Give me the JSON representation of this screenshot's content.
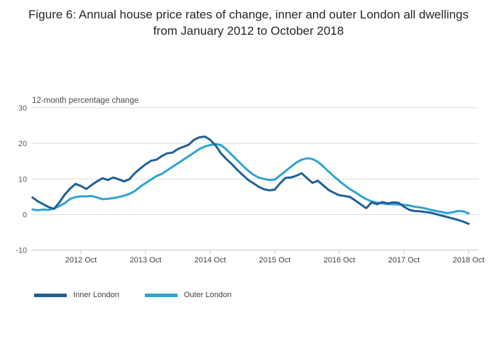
{
  "figure": {
    "title": "Figure 6: Annual house price rates of change, inner and outer London all dwellings from January 2012 to October 2018",
    "unit_label": "12-month percentage change"
  },
  "chart_data": {
    "type": "line",
    "title": "Figure 6: Annual house price rates of change, inner and outer London all dwellings from January 2012 to October 2018",
    "ylabel": "12-month percentage change",
    "xlabel": "",
    "x_start": "2012-01",
    "x_end": "2018-10",
    "months_total": 82,
    "ylim": [
      -10,
      30
    ],
    "y_ticks": [
      30,
      20,
      10,
      0,
      -10
    ],
    "x_tick_labels": [
      "2012 Oct",
      "2013 Oct",
      "2014 Oct",
      "2015 Oct",
      "2016 Oct",
      "2017 Oct",
      "2018 Oct"
    ],
    "x_tick_month_indices": [
      9,
      21,
      33,
      45,
      57,
      69,
      81
    ],
    "grid": true,
    "legend_position": "bottom-left",
    "series": [
      {
        "name": "Inner London",
        "color": "#206095",
        "values": [
          4.8,
          3.7,
          2.9,
          2.1,
          1.6,
          3.4,
          5.6,
          7.3,
          8.6,
          8.0,
          7.2,
          8.3,
          9.3,
          10.2,
          9.7,
          10.4,
          9.9,
          9.3,
          9.9,
          11.6,
          12.9,
          14.1,
          15.1,
          15.4,
          16.4,
          17.2,
          17.4,
          18.4,
          19.0,
          19.6,
          21.0,
          21.7,
          21.9,
          21.0,
          19.4,
          17.2,
          15.6,
          14.2,
          12.6,
          11.2,
          9.8,
          8.8,
          7.8,
          7.1,
          6.8,
          7.0,
          8.8,
          10.3,
          10.4,
          10.9,
          11.6,
          10.2,
          8.9,
          9.5,
          8.2,
          6.9,
          6.1,
          5.4,
          5.2,
          4.9,
          3.9,
          2.8,
          1.8,
          3.4,
          2.9,
          3.5,
          3.1,
          3.4,
          3.3,
          2.2,
          1.3,
          1.0,
          0.9,
          0.7,
          0.5,
          0.1,
          -0.3,
          -0.7,
          -1.1,
          -1.5,
          -2.0,
          -2.6
        ]
      },
      {
        "name": "Outer London",
        "color": "#2fa3d2",
        "values": [
          1.4,
          1.2,
          1.4,
          1.3,
          1.7,
          2.4,
          3.2,
          4.4,
          4.9,
          5.1,
          5.1,
          5.2,
          4.8,
          4.3,
          4.4,
          4.6,
          4.9,
          5.3,
          5.8,
          6.6,
          7.8,
          8.8,
          9.8,
          10.8,
          11.4,
          12.4,
          13.4,
          14.4,
          15.4,
          16.4,
          17.4,
          18.4,
          19.1,
          19.5,
          19.8,
          19.5,
          18.3,
          16.8,
          15.3,
          13.8,
          12.4,
          11.2,
          10.4,
          10.0,
          9.7,
          9.8,
          11.0,
          12.2,
          13.4,
          14.6,
          15.4,
          15.8,
          15.6,
          14.8,
          13.5,
          12.1,
          10.7,
          9.4,
          8.2,
          7.1,
          6.2,
          5.2,
          4.3,
          3.7,
          3.3,
          3.1,
          2.9,
          2.9,
          2.8,
          2.7,
          2.5,
          2.2,
          2.0,
          1.7,
          1.3,
          1.0,
          0.7,
          0.4,
          0.6,
          1.0,
          0.9,
          0.3
        ]
      }
    ],
    "colors": {
      "grid": "#dcdcdc",
      "axis": "#c2c8cc",
      "tick_label": "#58595b",
      "x_label": "#414042"
    }
  }
}
